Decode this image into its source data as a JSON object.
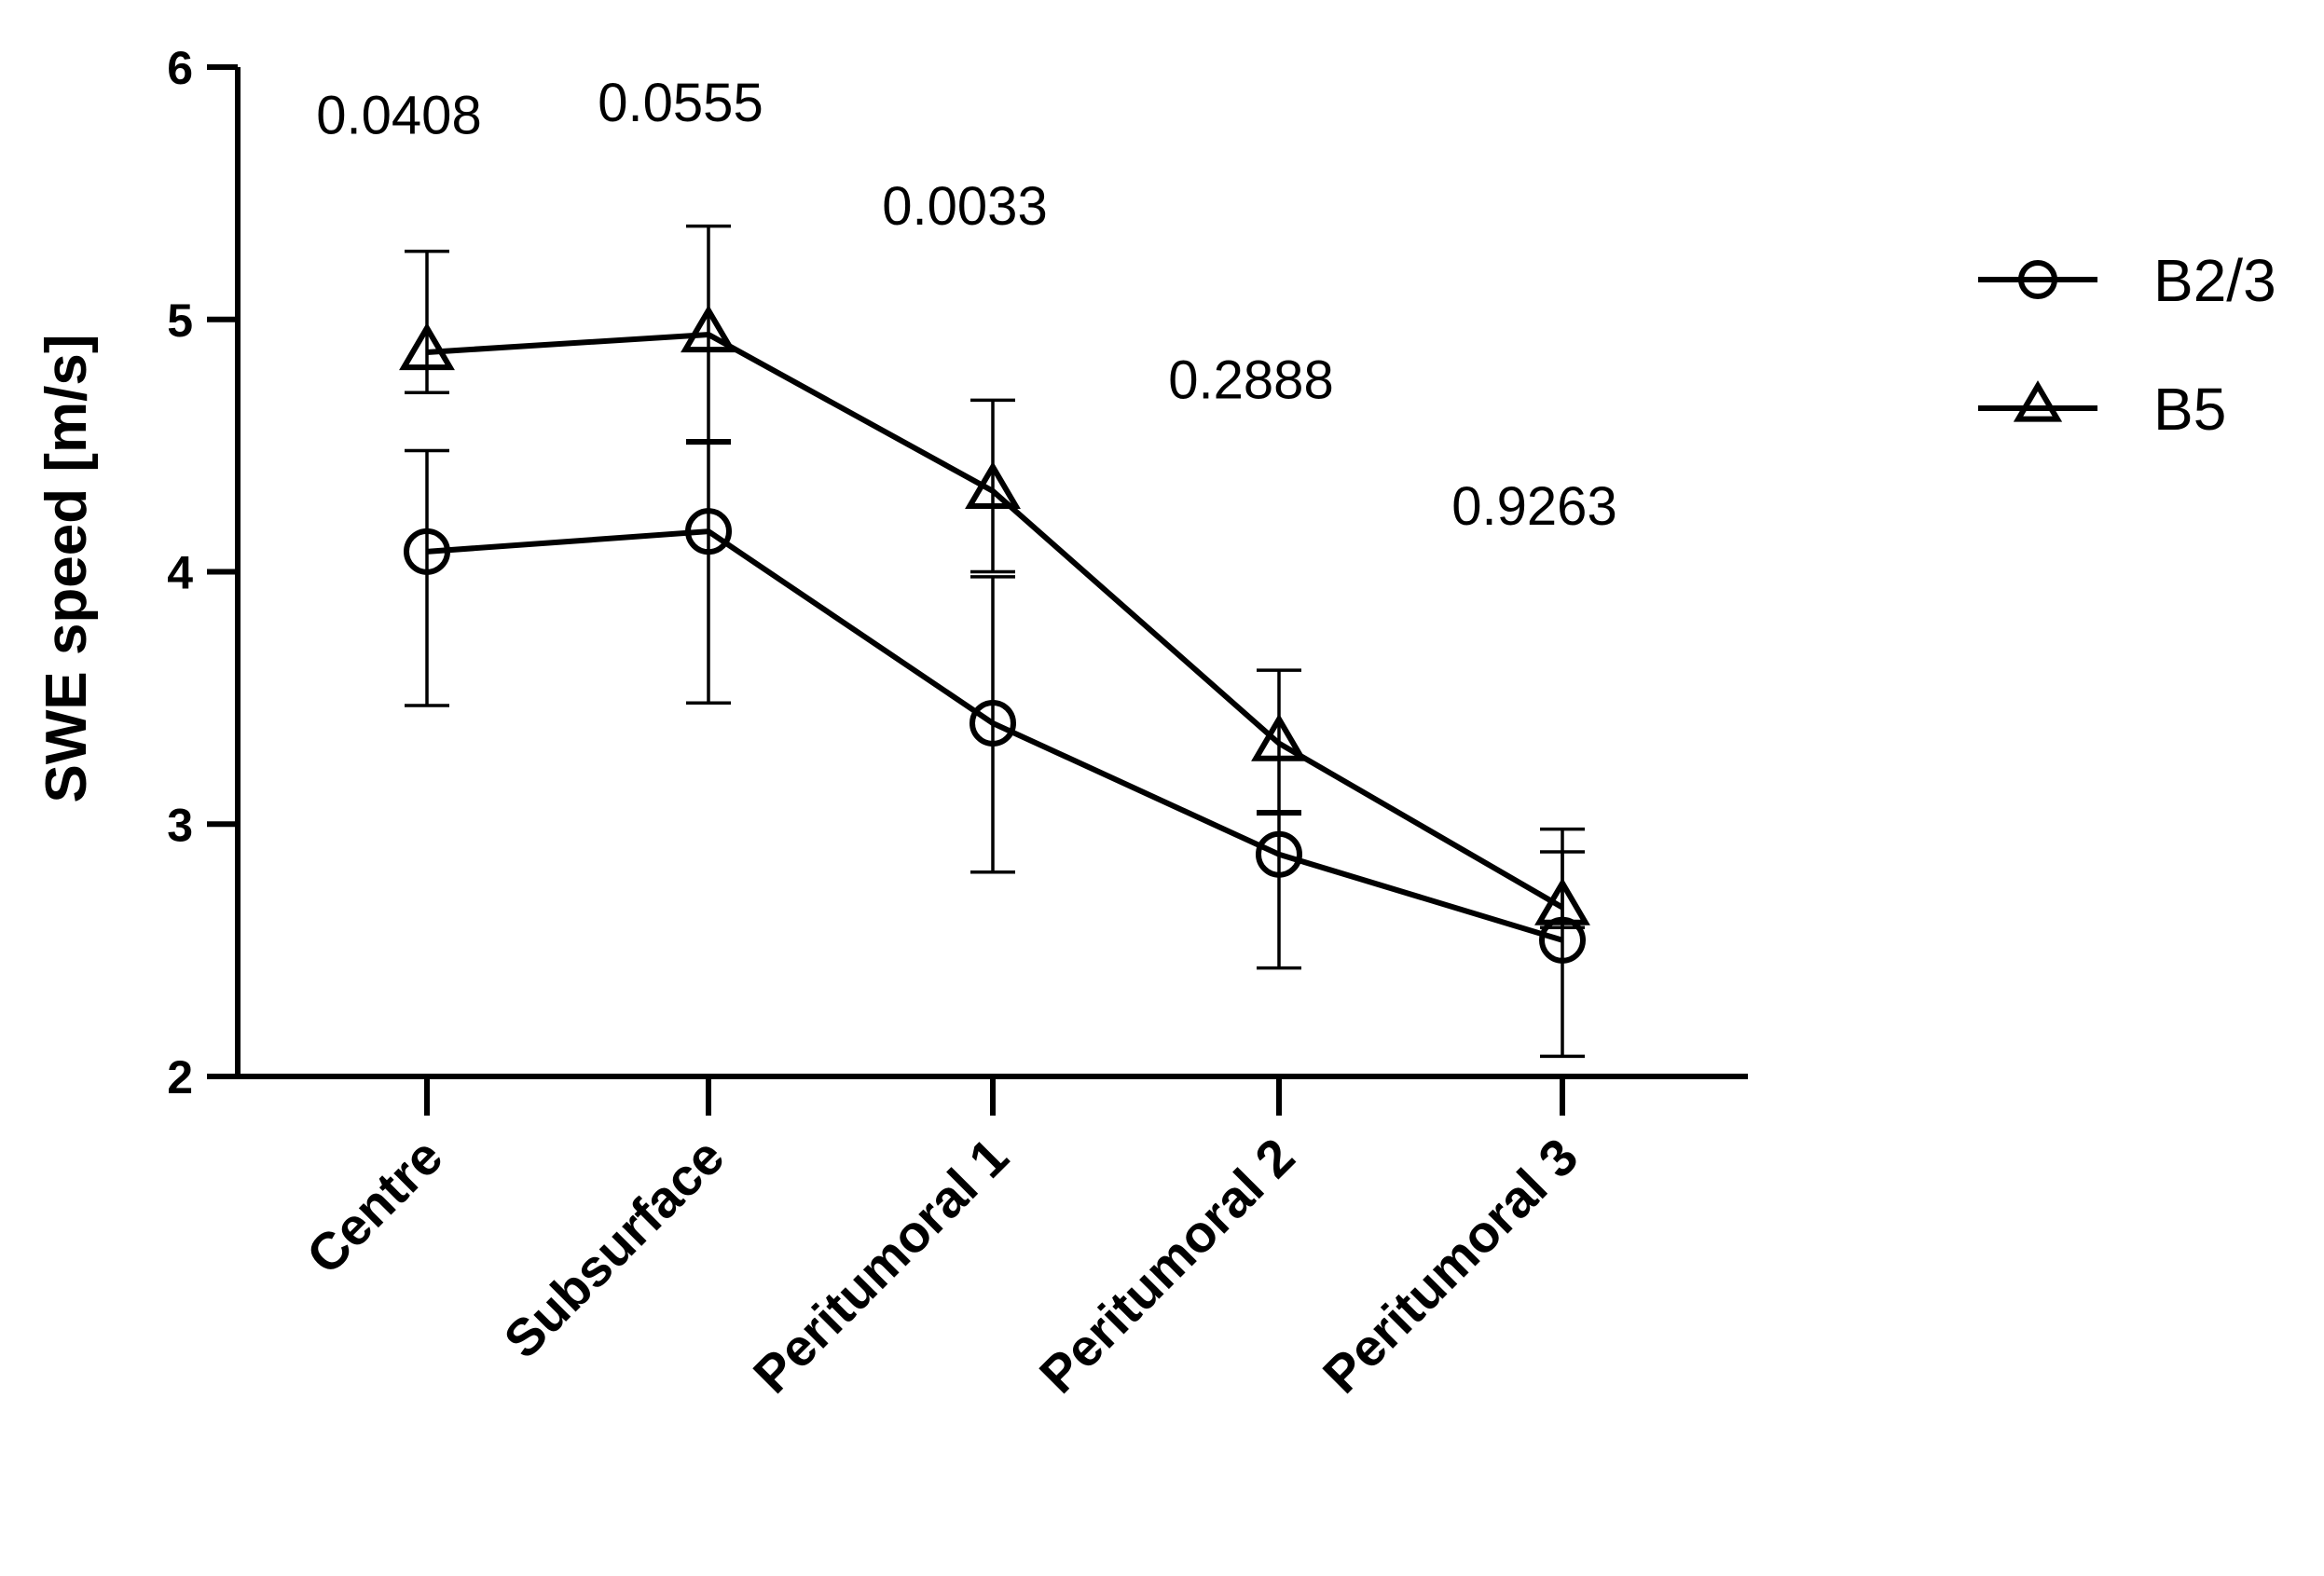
{
  "chart_data": {
    "type": "line",
    "title": "",
    "xlabel": "",
    "ylabel": "SWE speed [m/s]",
    "ylim": [
      2,
      6
    ],
    "yticks": [
      2,
      3,
      4,
      5,
      6
    ],
    "categories": [
      "Centre",
      "Subsurface",
      "Peritumoral 1",
      "Peritumoral 2",
      "Peritumoral 3"
    ],
    "series": [
      {
        "name": "B2/3",
        "marker": "circle",
        "values": [
          4.08,
          4.16,
          3.4,
          2.88,
          2.54
        ],
        "err_high": [
          4.48,
          4.52,
          3.98,
          3.05,
          2.89
        ],
        "err_low": [
          3.47,
          3.48,
          2.81,
          2.43,
          2.08
        ]
      },
      {
        "name": "B5",
        "marker": "triangle",
        "values": [
          4.87,
          4.94,
          4.32,
          3.32,
          2.67
        ],
        "err_high": [
          5.27,
          5.37,
          4.68,
          3.61,
          2.98
        ],
        "err_low": [
          4.71,
          4.51,
          4.0,
          3.04,
          2.59
        ]
      }
    ],
    "annotations": [
      "0.0408",
      "0.0555",
      "0.0033",
      "0.2888",
      "0.9263"
    ],
    "annotation_levels": [
      5.81,
      5.86,
      5.45,
      4.76,
      4.26
    ],
    "legend_position": "top-right",
    "grid": false
  }
}
